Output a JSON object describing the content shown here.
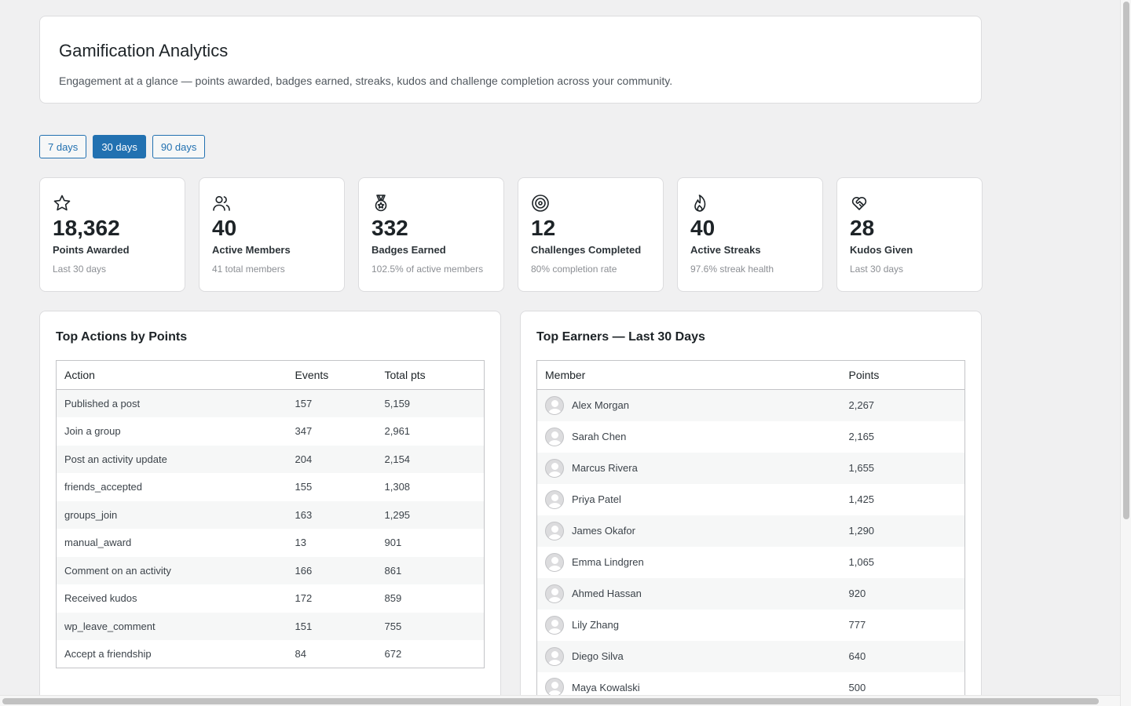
{
  "header": {
    "title": "Gamification Analytics",
    "description": "Engagement at a glance — points awarded, badges earned, streaks, kudos and challenge completion across your community."
  },
  "range": {
    "options": [
      "7 days",
      "30 days",
      "90 days"
    ],
    "selected": "30 days"
  },
  "stats": [
    {
      "icon": "star-icon",
      "value": "18,362",
      "label": "Points Awarded",
      "sub": "Last 30 days"
    },
    {
      "icon": "users-icon",
      "value": "40",
      "label": "Active Members",
      "sub": "41 total members"
    },
    {
      "icon": "medal-icon",
      "value": "332",
      "label": "Badges Earned",
      "sub": "102.5% of active members"
    },
    {
      "icon": "target-icon",
      "value": "12",
      "label": "Challenges Completed",
      "sub": "80% completion rate"
    },
    {
      "icon": "flame-icon",
      "value": "40",
      "label": "Active Streaks",
      "sub": "97.6% streak health"
    },
    {
      "icon": "heart-handshake-icon",
      "value": "28",
      "label": "Kudos Given",
      "sub": "Last 30 days"
    }
  ],
  "top_actions": {
    "title": "Top Actions by Points",
    "columns": [
      "Action",
      "Events",
      "Total pts"
    ],
    "rows": [
      [
        "Published a post",
        "157",
        "5,159"
      ],
      [
        "Join a group",
        "347",
        "2,961"
      ],
      [
        "Post an activity update",
        "204",
        "2,154"
      ],
      [
        "friends_accepted",
        "155",
        "1,308"
      ],
      [
        "groups_join",
        "163",
        "1,295"
      ],
      [
        "manual_award",
        "13",
        "901"
      ],
      [
        "Comment on an activity",
        "166",
        "861"
      ],
      [
        "Received kudos",
        "172",
        "859"
      ],
      [
        "wp_leave_comment",
        "151",
        "755"
      ],
      [
        "Accept a friendship",
        "84",
        "672"
      ]
    ]
  },
  "top_earners": {
    "title": "Top Earners — Last 30 Days",
    "columns": [
      "Member",
      "Points"
    ],
    "rows": [
      [
        "Alex Morgan",
        "2,267"
      ],
      [
        "Sarah Chen",
        "2,165"
      ],
      [
        "Marcus Rivera",
        "1,655"
      ],
      [
        "Priya Patel",
        "1,425"
      ],
      [
        "James Okafor",
        "1,290"
      ],
      [
        "Emma Lindgren",
        "1,065"
      ],
      [
        "Ahmed Hassan",
        "920"
      ],
      [
        "Lily Zhang",
        "777"
      ],
      [
        "Diego Silva",
        "640"
      ],
      [
        "Maya Kowalski",
        "500"
      ]
    ]
  }
}
